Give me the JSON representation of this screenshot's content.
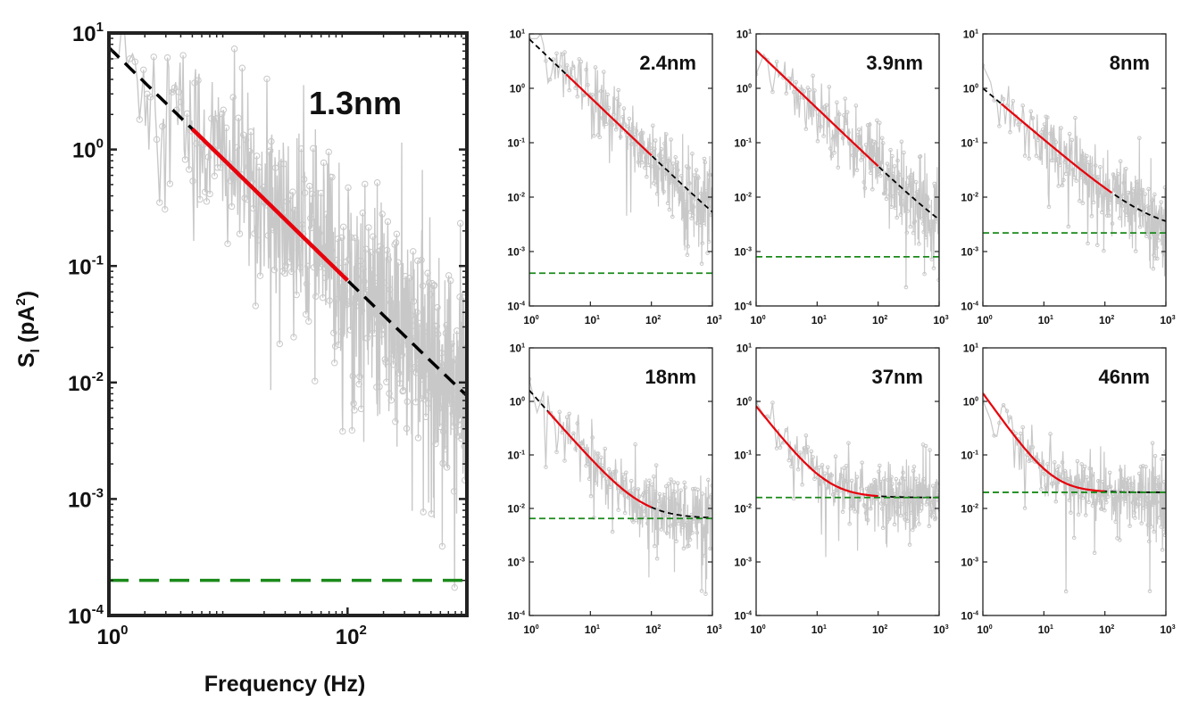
{
  "figure": {
    "ylabel_main": "S",
    "ylabel_sub": "I",
    "ylabel_rest": " (pA",
    "ylabel_sup": "2",
    "ylabel_close": ")",
    "xlabel": "Frequency (Hz)"
  },
  "colors": {
    "data": "#c8c8c8",
    "fit": "#e8000b",
    "extrapolation": "#000000",
    "noise_floor": "#1a8a1a"
  },
  "chart_data": [
    {
      "type": "line",
      "panel": "main",
      "title": "1.3nm",
      "xlabel": "Frequency (Hz)",
      "ylabel": "S_I (pA^2)",
      "xscale": "log",
      "yscale": "log",
      "xlim": [
        1,
        1000
      ],
      "ylim": [
        0.0001,
        10
      ],
      "x_ticks": [
        "10^0",
        "10^2"
      ],
      "y_ticks": [
        "10^1",
        "10^0",
        "10^-1",
        "10^-2",
        "10^-3",
        "10^-4"
      ],
      "noise_floor": 0.0002,
      "fit_range": [
        5,
        100
      ],
      "model": {
        "a": 7.5,
        "alpha": 1.0,
        "c": 0.0002
      },
      "series": [
        {
          "name": "",
          "style": "grey data",
          "noise": 0.45
        },
        {
          "name": "",
          "style": "red fit"
        },
        {
          "name": "",
          "style": "black dashed extrapolation"
        },
        {
          "name": "",
          "style": "green dashed noise floor"
        }
      ]
    },
    {
      "type": "line",
      "panel": "small",
      "title": "2.4nm",
      "xscale": "log",
      "yscale": "log",
      "xlim": [
        1,
        1000
      ],
      "ylim": [
        0.0001,
        10
      ],
      "x_ticks": [
        "10^0",
        "10^1",
        "10^2",
        "10^3"
      ],
      "y_ticks": [
        "10^1",
        "10^0",
        "10^-1",
        "10^-2",
        "10^-3",
        "10^-4"
      ],
      "noise_floor": 0.0004,
      "fit_range": [
        4,
        100
      ],
      "model": {
        "a": 8,
        "alpha": 1.07,
        "c": 0.0004
      },
      "noise": 0.35
    },
    {
      "type": "line",
      "panel": "small",
      "title": "3.9nm",
      "xscale": "log",
      "yscale": "log",
      "xlim": [
        1,
        1000
      ],
      "ylim": [
        0.0001,
        10
      ],
      "x_ticks": [
        "10^0",
        "10^1",
        "10^2",
        "10^3"
      ],
      "y_ticks": [
        "10^1",
        "10^0",
        "10^-1",
        "10^-2",
        "10^-3",
        "10^-4"
      ],
      "noise_floor": 0.0008,
      "fit_range": [
        1,
        100
      ],
      "model": {
        "a": 5,
        "alpha": 1.07,
        "c": 0.0008
      },
      "noise": 0.35
    },
    {
      "type": "line",
      "panel": "small",
      "title": "8nm",
      "xscale": "log",
      "yscale": "log",
      "xlim": [
        1,
        1000
      ],
      "ylim": [
        0.0001,
        10
      ],
      "x_ticks": [
        "10^0",
        "10^1",
        "10^2",
        "10^3"
      ],
      "y_ticks": [
        "10^1",
        "10^0",
        "10^-1",
        "10^-2",
        "10^-3",
        "10^-4"
      ],
      "noise_floor": 0.0022,
      "fit_range": [
        2,
        130
      ],
      "model": {
        "a": 1.0,
        "alpha": 0.95,
        "c": 0.0022
      },
      "noise": 0.35
    },
    {
      "type": "line",
      "panel": "small",
      "title": "18nm",
      "xscale": "log",
      "yscale": "log",
      "xlim": [
        1,
        1000
      ],
      "ylim": [
        0.0001,
        10
      ],
      "x_ticks": [
        "10^0",
        "10^1",
        "10^2",
        "10^3"
      ],
      "y_ticks": [
        "10^1",
        "10^0",
        "10^-1",
        "10^-2",
        "10^-3",
        "10^-4"
      ],
      "noise_floor": 0.0065,
      "fit_range": [
        2,
        100
      ],
      "model": {
        "a": 1.6,
        "alpha": 1.3,
        "c": 0.0065
      },
      "noise": 0.3
    },
    {
      "type": "line",
      "panel": "small",
      "title": "37nm",
      "xscale": "log",
      "yscale": "log",
      "xlim": [
        1,
        1000
      ],
      "ylim": [
        0.0001,
        10
      ],
      "x_ticks": [
        "10^0",
        "10^1",
        "10^2",
        "10^3"
      ],
      "y_ticks": [
        "10^1",
        "10^0",
        "10^-1",
        "10^-2",
        "10^-3",
        "10^-4"
      ],
      "noise_floor": 0.016,
      "fit_range": [
        1,
        100
      ],
      "model": {
        "a": 0.8,
        "alpha": 1.45,
        "c": 0.016
      },
      "noise": 0.3
    },
    {
      "type": "line",
      "panel": "small",
      "title": "46nm",
      "xscale": "log",
      "yscale": "log",
      "xlim": [
        1,
        1000
      ],
      "ylim": [
        0.0001,
        10
      ],
      "x_ticks": [
        "10^0",
        "10^1",
        "10^2",
        "10^3"
      ],
      "y_ticks": [
        "10^1",
        "10^0",
        "10^-1",
        "10^-2",
        "10^-3",
        "10^-4"
      ],
      "noise_floor": 0.02,
      "fit_range": [
        1,
        100
      ],
      "model": {
        "a": 1.4,
        "alpha": 1.6,
        "c": 0.02
      },
      "noise": 0.3
    }
  ]
}
